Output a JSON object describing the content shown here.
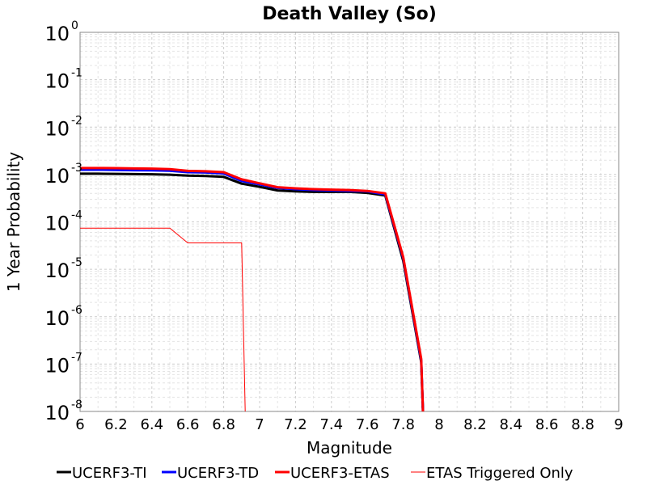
{
  "chart_data": {
    "type": "line",
    "title": "Death Valley (So)",
    "xlabel": "Magnitude",
    "ylabel": "1 Year Probability",
    "xlim": [
      6,
      9
    ],
    "ylim": [
      1e-08,
      1
    ],
    "yscale": "log",
    "grid": true,
    "legend_position": "bottom",
    "x_ticks": [
      "6",
      "6.2",
      "6.4",
      "6.6",
      "6.8",
      "7",
      "7.2",
      "7.4",
      "7.6",
      "7.8",
      "8",
      "8.2",
      "8.4",
      "8.6",
      "8.8",
      "9"
    ],
    "y_ticks": [
      {
        "base": "10",
        "exp": "0"
      },
      {
        "base": "10",
        "exp": "-1"
      },
      {
        "base": "10",
        "exp": "-2"
      },
      {
        "base": "10",
        "exp": "-3"
      },
      {
        "base": "10",
        "exp": "-4"
      },
      {
        "base": "10",
        "exp": "-5"
      },
      {
        "base": "10",
        "exp": "-6"
      },
      {
        "base": "10",
        "exp": "-7"
      },
      {
        "base": "10",
        "exp": "-8"
      }
    ],
    "series": [
      {
        "name": "UCERF3-TI",
        "color": "#000000",
        "line_width": 3,
        "x": [
          6.0,
          6.1,
          6.2,
          6.3,
          6.4,
          6.5,
          6.6,
          6.7,
          6.8,
          6.9,
          7.0,
          7.1,
          7.2,
          7.3,
          7.4,
          7.5,
          7.6,
          7.7,
          7.8,
          7.9,
          7.91
        ],
        "y": [
          0.00104,
          0.00104,
          0.00103,
          0.00102,
          0.00101,
          0.00099,
          0.00095,
          0.00093,
          0.00089,
          0.00064,
          0.00055,
          0.00046,
          0.00044,
          0.00043,
          0.00043,
          0.00043,
          0.00041,
          0.00036,
          1.5e-05,
          1.1e-07,
          1e-08
        ]
      },
      {
        "name": "UCERF3-TD",
        "color": "#0000ff",
        "line_width": 3,
        "x": [
          6.0,
          6.1,
          6.2,
          6.3,
          6.4,
          6.5,
          6.6,
          6.7,
          6.8,
          6.9,
          7.0,
          7.1,
          7.2,
          7.3,
          7.4,
          7.5,
          7.6,
          7.7,
          7.8,
          7.9,
          7.91
        ],
        "y": [
          0.00126,
          0.00126,
          0.00125,
          0.00123,
          0.00122,
          0.0012,
          0.00112,
          0.0011,
          0.00105,
          0.00073,
          0.00062,
          0.00052,
          0.00049,
          0.00047,
          0.00046,
          0.00045,
          0.00044,
          0.00038,
          1.7e-05,
          1.2e-07,
          1e-08
        ]
      },
      {
        "name": "UCERF3-ETAS",
        "color": "#ff0000",
        "line_width": 3,
        "x": [
          6.0,
          6.1,
          6.2,
          6.3,
          6.4,
          6.5,
          6.6,
          6.7,
          6.8,
          6.9,
          7.0,
          7.1,
          7.2,
          7.3,
          7.4,
          7.5,
          7.6,
          7.7,
          7.8,
          7.9,
          7.91
        ],
        "y": [
          0.00137,
          0.00137,
          0.00136,
          0.00134,
          0.00133,
          0.0013,
          0.00119,
          0.00117,
          0.00112,
          0.00079,
          0.00065,
          0.00054,
          0.00051,
          0.00049,
          0.00048,
          0.00047,
          0.00045,
          0.0004,
          1.8e-05,
          1.3e-07,
          1e-08
        ]
      },
      {
        "name": "ETAS Triggered Only",
        "color": "#ff0000",
        "line_width": 1,
        "x": [
          6.0,
          6.5,
          6.6,
          6.9,
          6.92
        ],
        "y": [
          7.4e-05,
          7.4e-05,
          3.6e-05,
          3.6e-05,
          1e-08
        ]
      }
    ]
  }
}
